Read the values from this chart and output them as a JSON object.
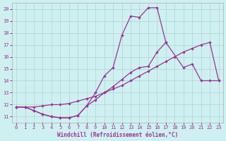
{
  "xlabel": "Windchill (Refroidissement éolien,°C)",
  "background_color": "#cff0f0",
  "line_color": "#993399",
  "xlim": [
    -0.5,
    23.5
  ],
  "ylim": [
    10.5,
    20.5
  ],
  "yticks": [
    11,
    12,
    13,
    14,
    15,
    16,
    17,
    18,
    19,
    20
  ],
  "xticks": [
    0,
    1,
    2,
    3,
    4,
    5,
    6,
    7,
    8,
    9,
    10,
    11,
    12,
    13,
    14,
    15,
    16,
    17,
    18,
    19,
    20,
    21,
    22,
    23
  ],
  "series1_x": [
    0,
    1,
    2,
    3,
    4,
    5,
    6,
    7,
    8,
    9,
    10,
    11,
    12,
    13,
    14,
    15,
    16,
    17
  ],
  "series1_y": [
    11.8,
    11.8,
    11.5,
    11.2,
    11.0,
    10.9,
    10.9,
    11.1,
    11.9,
    13.0,
    14.4,
    15.1,
    17.8,
    19.4,
    19.3,
    20.1,
    20.1,
    17.2
  ],
  "series2_x": [
    0,
    1,
    2,
    3,
    4,
    5,
    6,
    7,
    8,
    9,
    10,
    11,
    12,
    13,
    14,
    15,
    16,
    17,
    18,
    19,
    20,
    21,
    22,
    23
  ],
  "series2_y": [
    11.8,
    11.8,
    11.8,
    11.9,
    12.0,
    12.0,
    12.1,
    12.3,
    12.5,
    12.7,
    13.0,
    13.3,
    13.6,
    14.0,
    14.4,
    14.8,
    15.2,
    15.6,
    16.0,
    16.4,
    16.7,
    17.0,
    17.2,
    14.0
  ],
  "series3_x": [
    0,
    1,
    2,
    3,
    4,
    5,
    6,
    7,
    8,
    9,
    10,
    11,
    12,
    13,
    14,
    15,
    16,
    17,
    19,
    20,
    21,
    22,
    23
  ],
  "series3_y": [
    11.8,
    11.8,
    11.5,
    11.2,
    11.0,
    10.9,
    10.9,
    11.1,
    11.9,
    12.4,
    13.0,
    13.5,
    14.1,
    14.7,
    15.1,
    15.2,
    16.4,
    17.2,
    15.1,
    15.4,
    14.0,
    14.0,
    14.0
  ]
}
